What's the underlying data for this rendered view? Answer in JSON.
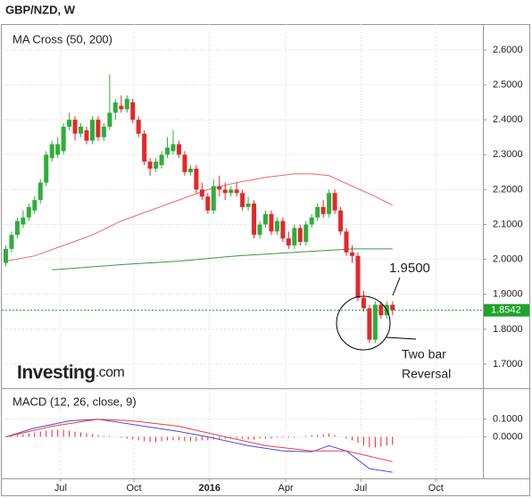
{
  "header": {
    "title": "GBP/NZD, W"
  },
  "logo": {
    "name": "Investing",
    "domain": ".com"
  },
  "chart_data": [
    {
      "type": "candlestick",
      "title": "MA Cross (50, 200)",
      "up_color": "#2fae3a",
      "down_color": "#e3282b",
      "open": [
        1.99,
        2.03,
        2.07,
        2.1,
        2.12,
        2.14,
        2.17,
        2.22,
        2.29,
        2.3,
        2.31,
        2.38,
        2.4,
        2.36,
        2.37,
        2.34,
        2.4,
        2.35,
        2.38,
        2.42,
        2.44,
        2.43,
        2.45,
        2.4,
        2.36,
        2.28,
        2.26,
        2.27,
        2.3,
        2.31,
        2.33,
        2.3,
        2.25,
        2.26,
        2.2,
        2.18,
        2.14,
        2.21,
        2.2,
        2.19,
        2.2,
        2.19,
        2.15,
        2.16,
        2.07,
        2.1,
        2.13,
        2.08,
        2.11,
        2.06,
        2.04,
        2.09,
        2.05,
        2.1,
        2.12,
        2.15,
        2.13,
        2.19,
        2.14,
        2.08,
        2.02,
        2.01,
        1.89,
        1.86,
        1.77,
        1.87,
        1.84,
        1.87
      ],
      "high": [
        2.04,
        2.08,
        2.12,
        2.14,
        2.16,
        2.18,
        2.23,
        2.31,
        2.34,
        2.35,
        2.39,
        2.42,
        2.41,
        2.39,
        2.38,
        2.41,
        2.41,
        2.39,
        2.53,
        2.46,
        2.47,
        2.47,
        2.46,
        2.41,
        2.37,
        2.29,
        2.29,
        2.31,
        2.35,
        2.37,
        2.34,
        2.31,
        2.27,
        2.27,
        2.22,
        2.19,
        2.23,
        2.24,
        2.22,
        2.21,
        2.22,
        2.2,
        2.18,
        2.17,
        2.11,
        2.14,
        2.14,
        2.12,
        2.12,
        2.08,
        2.1,
        2.1,
        2.11,
        2.13,
        2.16,
        2.17,
        2.2,
        2.2,
        2.15,
        2.09,
        2.04,
        2.02,
        1.91,
        1.87,
        1.88,
        1.88,
        1.88,
        1.88
      ],
      "low": [
        1.98,
        2.02,
        2.06,
        2.09,
        2.11,
        2.13,
        2.16,
        2.21,
        2.28,
        2.29,
        2.3,
        2.37,
        2.34,
        2.35,
        2.33,
        2.33,
        2.34,
        2.34,
        2.37,
        2.4,
        2.42,
        2.42,
        2.39,
        2.35,
        2.27,
        2.24,
        2.25,
        2.26,
        2.29,
        2.3,
        2.29,
        2.24,
        2.24,
        2.19,
        2.17,
        2.13,
        2.13,
        2.18,
        2.17,
        2.18,
        2.18,
        2.14,
        2.14,
        2.06,
        2.06,
        2.09,
        2.07,
        2.07,
        2.05,
        2.03,
        2.03,
        2.04,
        2.04,
        2.09,
        2.11,
        2.12,
        2.12,
        2.13,
        2.07,
        2.01,
        1.99,
        1.88,
        1.85,
        1.76,
        1.76,
        1.83,
        1.83,
        1.84
      ],
      "close": [
        2.03,
        2.07,
        2.11,
        2.12,
        2.15,
        2.17,
        2.22,
        2.3,
        2.33,
        2.33,
        2.38,
        2.4,
        2.36,
        2.38,
        2.34,
        2.4,
        2.35,
        2.38,
        2.42,
        2.45,
        2.43,
        2.46,
        2.4,
        2.36,
        2.28,
        2.26,
        2.28,
        2.3,
        2.32,
        2.33,
        2.3,
        2.25,
        2.26,
        2.2,
        2.18,
        2.14,
        2.21,
        2.2,
        2.19,
        2.2,
        2.19,
        2.15,
        2.16,
        2.07,
        2.1,
        2.13,
        2.08,
        2.11,
        2.06,
        2.04,
        2.09,
        2.05,
        2.1,
        2.12,
        2.15,
        2.13,
        2.19,
        2.14,
        2.08,
        2.02,
        2.01,
        1.89,
        1.86,
        1.77,
        1.87,
        1.84,
        1.87,
        1.8542
      ],
      "lines": [
        {
          "color": "#ee6a64",
          "x": [
            0,
            5,
            10,
            15,
            20,
            25,
            30,
            35,
            40,
            45,
            50,
            53,
            56,
            60,
            64,
            67
          ],
          "values": [
            1.995,
            2.01,
            2.04,
            2.07,
            2.11,
            2.14,
            2.17,
            2.2,
            2.22,
            2.235,
            2.245,
            2.245,
            2.24,
            2.21,
            2.18,
            2.155
          ]
        },
        {
          "color": "#3c9a3c",
          "x": [
            8,
            20,
            30,
            40,
            50,
            60,
            64,
            67
          ],
          "values": [
            1.97,
            1.985,
            1.995,
            2.01,
            2.02,
            2.03,
            2.03,
            2.03
          ]
        }
      ],
      "last_price": 1.8542,
      "last_color": "#1fa32a",
      "xlim": [
        -1,
        82.5
      ],
      "xticks": [
        {
          "value": 9.5,
          "label": "Jul"
        },
        {
          "value": 22.2,
          "label": "Oct"
        },
        {
          "value": 35.3,
          "label": "2016"
        },
        {
          "value": 48.5,
          "label": "Apr"
        },
        {
          "value": 61.5,
          "label": "Jul"
        },
        {
          "value": 74.5,
          "label": "Oct"
        }
      ],
      "ylim": [
        1.6335,
        2.674
      ],
      "yticks": [
        {
          "value": 1.7,
          "label": "1.7000"
        },
        {
          "value": 1.8,
          "label": "1.8000"
        },
        {
          "value": 1.9,
          "label": "1.9000"
        },
        {
          "value": 2.0,
          "label": "2.0000"
        },
        {
          "value": 2.1,
          "label": "2.1000"
        },
        {
          "value": 2.2,
          "label": "2.2000"
        },
        {
          "value": 2.3,
          "label": "2.3000"
        },
        {
          "value": 2.4,
          "label": "2.4000"
        },
        {
          "value": 2.5,
          "label": "2.5000"
        },
        {
          "value": 2.6,
          "label": "2.6000"
        }
      ],
      "grid": true,
      "annotations": [
        "1.9500",
        "Two bar",
        "Reversal"
      ]
    },
    {
      "type": "macd",
      "title": "MACD (12, 26, close, 9)",
      "series": [
        {
          "color": "#4b4bdc",
          "x": [
            0,
            5,
            11,
            16,
            22,
            30,
            35,
            42,
            48,
            53,
            56,
            59,
            63,
            67
          ],
          "values": [
            0.0,
            0.05,
            0.09,
            0.1,
            0.07,
            0.03,
            0.0,
            -0.05,
            -0.08,
            -0.085,
            -0.05,
            -0.08,
            -0.18,
            -0.2
          ]
        },
        {
          "color": "#e8423f",
          "x": [
            0,
            8,
            16,
            22,
            30,
            38,
            45,
            53,
            59,
            67
          ],
          "values": [
            0.0,
            0.06,
            0.1,
            0.09,
            0.06,
            0.0,
            -0.05,
            -0.08,
            -0.08,
            -0.14
          ]
        }
      ],
      "histogram": {
        "color": "#e3282b",
        "values": [
          0.0,
          0.005,
          0.01,
          0.015,
          0.02,
          0.025,
          0.03,
          0.035,
          0.04,
          0.04,
          0.04,
          0.035,
          0.03,
          0.025,
          0.02,
          0.015,
          0.01,
          0.005,
          0.005,
          0.0,
          -0.005,
          -0.01,
          -0.015,
          -0.02,
          -0.025,
          -0.03,
          -0.03,
          -0.025,
          -0.02,
          -0.02,
          -0.02,
          -0.025,
          -0.025,
          -0.025,
          -0.02,
          -0.02,
          -0.015,
          -0.015,
          -0.01,
          -0.01,
          -0.01,
          -0.01,
          -0.015,
          -0.015,
          -0.01,
          -0.01,
          -0.01,
          -0.005,
          -0.005,
          -0.005,
          -0.005,
          0.0,
          0.005,
          0.01,
          0.01,
          0.015,
          0.02,
          0.01,
          0.0,
          -0.01,
          -0.02,
          -0.035,
          -0.05,
          -0.06,
          -0.06,
          -0.055,
          -0.05,
          -0.045
        ]
      },
      "ylim": [
        -0.23,
        0.27
      ],
      "yticks": [
        {
          "value": 0.1,
          "label": "0.1000"
        },
        {
          "value": 0,
          "label": "0.0000"
        }
      ],
      "grid": true
    }
  ]
}
